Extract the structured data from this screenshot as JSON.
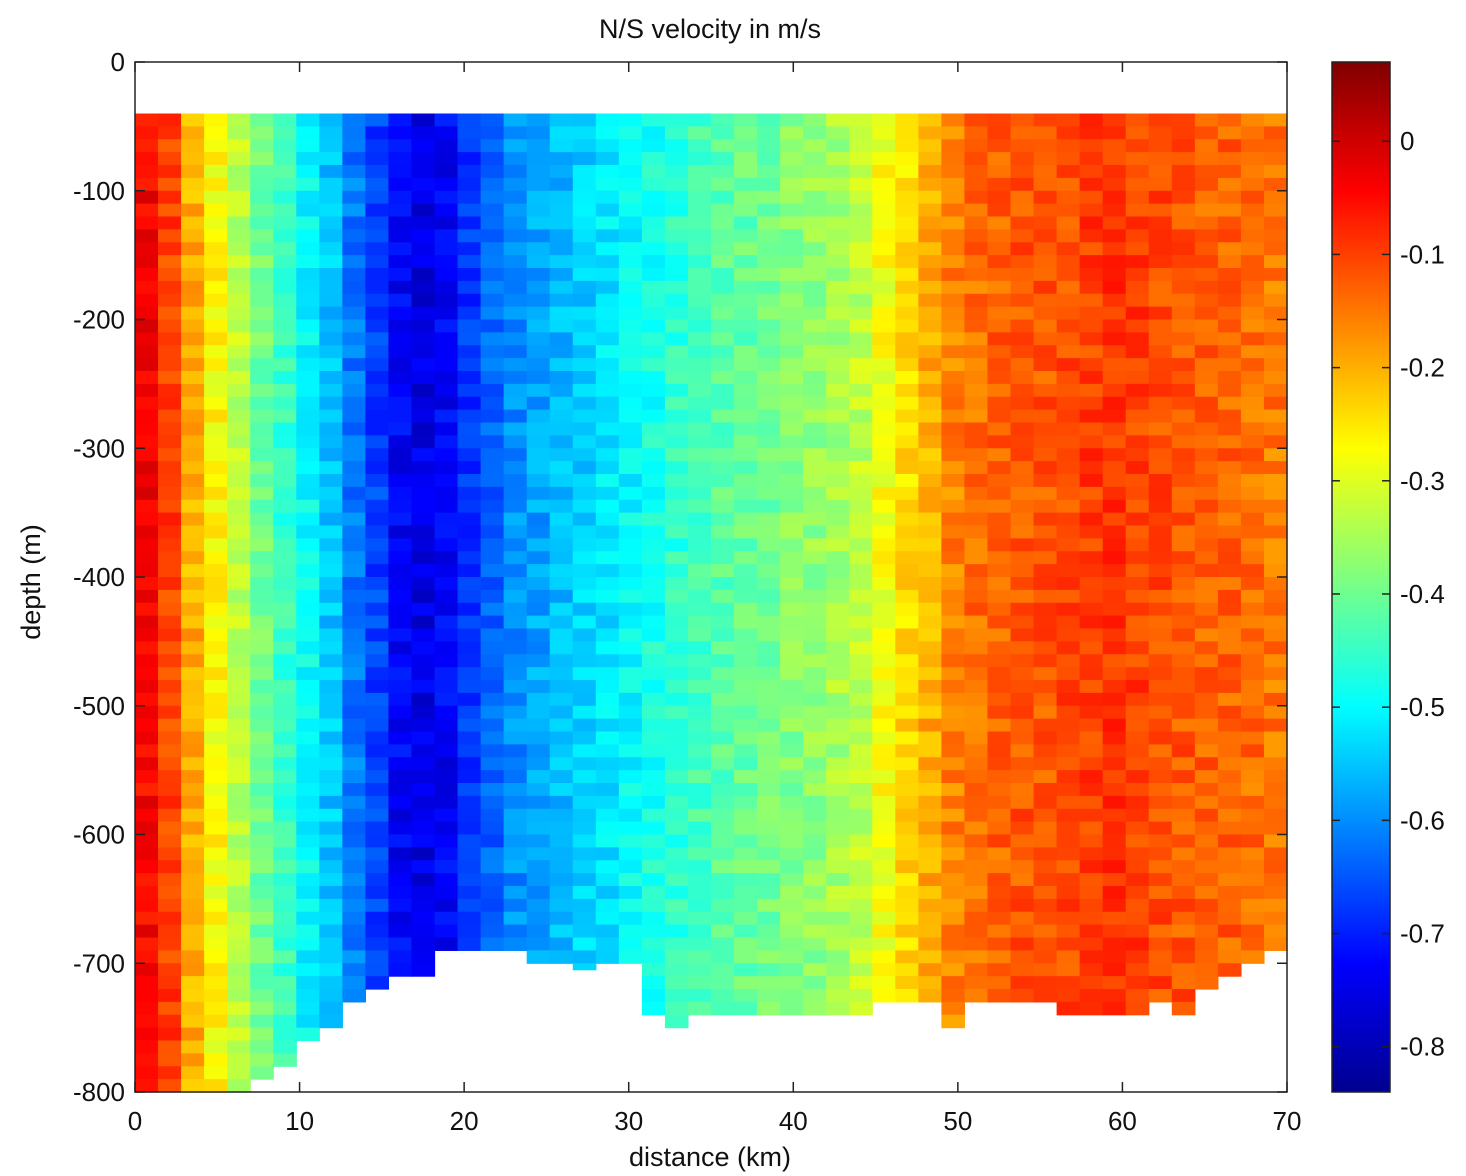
{
  "chart_data": {
    "type": "heatmap",
    "title": "N/S velocity in m/s",
    "xlabel": "distance (km)",
    "ylabel": "depth (m)",
    "xlim": [
      0,
      70
    ],
    "ylim": [
      -800,
      0
    ],
    "x_ticks": [
      "0",
      "10",
      "20",
      "30",
      "40",
      "50",
      "60",
      "70"
    ],
    "y_ticks": [
      "0",
      "-100",
      "-200",
      "-300",
      "-400",
      "-500",
      "-600",
      "-700",
      "-800"
    ],
    "colorbar": {
      "range": [
        -0.84,
        0.07
      ],
      "ticks": [
        "0",
        "-0.1",
        "-0.2",
        "-0.3",
        "-0.4",
        "-0.5",
        "-0.6",
        "-0.7",
        "-0.8"
      ],
      "colormap": "jet"
    },
    "grid": false,
    "data_top_depth": -40,
    "cell_size": {
      "dx_km": 1.4,
      "dz_m": 10
    },
    "column_centers_km": [
      0.7,
      2.1,
      3.5,
      4.9,
      6.3,
      7.7,
      9.1,
      10.5,
      11.9,
      13.3,
      14.7,
      16.1,
      17.5,
      18.9,
      20.3,
      21.7,
      23.1,
      24.5,
      25.9,
      27.3,
      28.7,
      30.1,
      31.5,
      32.9,
      34.3,
      35.7,
      37.1,
      38.5,
      39.9,
      41.3,
      42.7,
      44.1,
      45.5,
      46.9,
      48.3,
      49.7,
      51.1,
      52.5,
      53.9,
      55.3,
      56.7,
      58.1,
      59.5,
      60.9,
      62.3,
      63.7,
      65.1,
      66.5,
      67.9,
      69.3
    ],
    "column_bottom_depth_m": [
      -800,
      -800,
      -800,
      -800,
      -800,
      -790,
      -780,
      -760,
      -750,
      -730,
      -720,
      -710,
      -710,
      -690,
      -690,
      -690,
      -690,
      -700,
      -700,
      -705,
      -700,
      -700,
      -740,
      -750,
      -740,
      -740,
      -740,
      -740,
      -740,
      -740,
      -740,
      -740,
      -730,
      -730,
      -730,
      -750,
      -730,
      -730,
      -730,
      -730,
      -740,
      -740,
      -740,
      -740,
      -730,
      -740,
      -720,
      -710,
      -700,
      -690
    ],
    "column_mean_velocity": [
      -0.04,
      -0.1,
      -0.2,
      -0.27,
      -0.33,
      -0.4,
      -0.45,
      -0.5,
      -0.55,
      -0.62,
      -0.67,
      -0.73,
      -0.75,
      -0.73,
      -0.68,
      -0.64,
      -0.6,
      -0.58,
      -0.56,
      -0.54,
      -0.52,
      -0.5,
      -0.48,
      -0.46,
      -0.44,
      -0.42,
      -0.41,
      -0.4,
      -0.38,
      -0.37,
      -0.35,
      -0.33,
      -0.28,
      -0.24,
      -0.2,
      -0.16,
      -0.14,
      -0.13,
      -0.12,
      -0.12,
      -0.11,
      -0.1,
      -0.09,
      -0.1,
      -0.11,
      -0.12,
      -0.13,
      -0.13,
      -0.14,
      -0.15
    ]
  }
}
